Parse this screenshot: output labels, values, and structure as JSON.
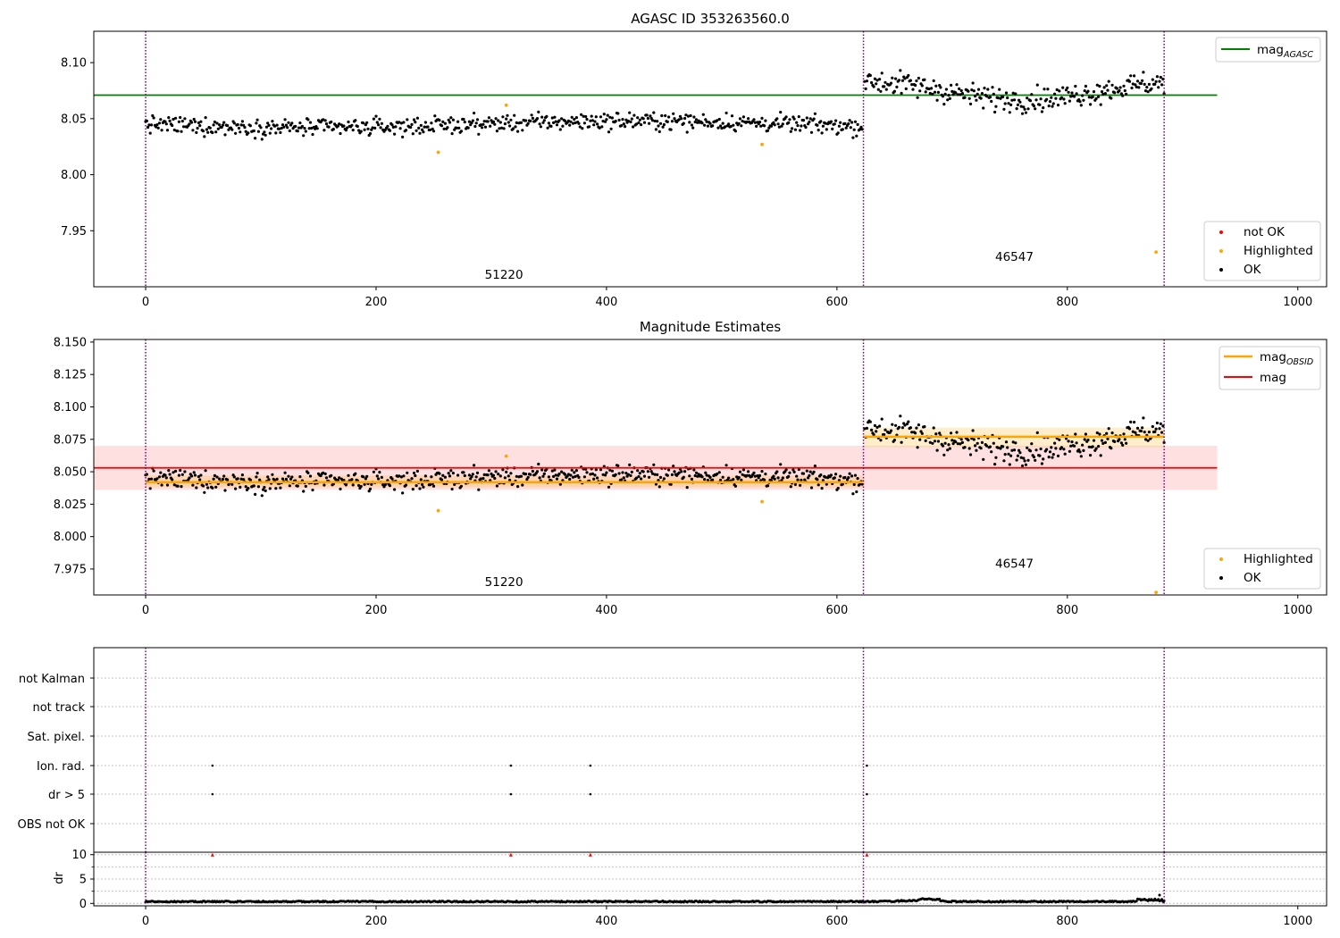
{
  "chart_data": [
    {
      "type": "scatter",
      "title": "AGASC ID 353263560.0",
      "xlim": [
        -45,
        1025
      ],
      "ylim": [
        7.9,
        8.128
      ],
      "xticks": [
        0,
        200,
        400,
        600,
        800,
        1000
      ],
      "yticks": [
        7.95,
        8.0,
        8.05,
        8.1
      ],
      "ytick_labels": [
        "7.95",
        "8.00",
        "8.05",
        "8.10"
      ],
      "obsid_boundaries": [
        0,
        623,
        884
      ],
      "obsid_labels": [
        {
          "text": "51220",
          "x": 311,
          "y": 7.907
        },
        {
          "text": "46547",
          "x": 754,
          "y": 7.923
        }
      ],
      "mag_agasc": {
        "value": 8.071,
        "x_range": [
          -45,
          930
        ]
      },
      "segments": [
        {
          "x_start": 0,
          "x_end": 622,
          "center": 8.045,
          "spread": 0.005
        },
        {
          "x_start": 624,
          "x_end": 884,
          "center": 8.077,
          "spread": 0.007
        }
      ],
      "highlighted_points": [
        [
          254,
          8.02
        ],
        [
          313,
          8.062
        ],
        [
          535,
          8.027
        ],
        [
          877,
          7.931
        ]
      ],
      "legend": {
        "top": [
          {
            "label": "mag",
            "subscript": "AGASC",
            "color": "#008000",
            "marker": "line"
          }
        ],
        "bottom": [
          {
            "label": "not OK",
            "color": "#ff0000",
            "marker": "dot"
          },
          {
            "label": "Highlighted",
            "color": "#ffa500",
            "marker": "dot"
          },
          {
            "label": "OK",
            "color": "#000000",
            "marker": "dot"
          }
        ]
      }
    },
    {
      "type": "scatter",
      "title": "Magnitude Estimates",
      "xlim": [
        -45,
        1025
      ],
      "ylim": [
        7.955,
        8.152
      ],
      "xticks": [
        0,
        200,
        400,
        600,
        800,
        1000
      ],
      "yticks": [
        7.975,
        8.0,
        8.025,
        8.05,
        8.075,
        8.1,
        8.125,
        8.15
      ],
      "ytick_labels": [
        "7.975",
        "8.000",
        "8.025",
        "8.050",
        "8.075",
        "8.100",
        "8.125",
        "8.150"
      ],
      "obsid_boundaries": [
        0,
        623,
        884
      ],
      "obsid_labels": [
        {
          "text": "51220",
          "x": 311,
          "y": 7.962
        },
        {
          "text": "46547",
          "x": 754,
          "y": 7.976
        }
      ],
      "mag": {
        "value": 8.053,
        "band": [
          8.036,
          8.07
        ],
        "x_range": [
          -45,
          930
        ]
      },
      "mag_obsid": [
        {
          "x_range": [
            0,
            623
          ],
          "value": 8.042,
          "band": [
            8.038,
            8.047
          ]
        },
        {
          "x_range": [
            623,
            884
          ],
          "value": 8.077,
          "band": [
            8.069,
            8.084
          ]
        }
      ],
      "segments": [
        {
          "x_start": 0,
          "x_end": 622,
          "center": 8.045,
          "spread": 0.005
        },
        {
          "x_start": 624,
          "x_end": 884,
          "center": 8.077,
          "spread": 0.007
        }
      ],
      "highlighted_points": [
        [
          254,
          8.02
        ],
        [
          313,
          8.062
        ],
        [
          535,
          8.027
        ],
        [
          877,
          7.957
        ]
      ],
      "legend": {
        "top": [
          {
            "label": "mag",
            "subscript": "OBSID",
            "color": "#ffa500",
            "marker": "line"
          },
          {
            "label": "mag",
            "subscript": "",
            "color": "#ff0000",
            "marker": "line"
          }
        ],
        "bottom": [
          {
            "label": "Highlighted",
            "color": "#ffa500",
            "marker": "dot"
          },
          {
            "label": "OK",
            "color": "#000000",
            "marker": "dot"
          }
        ]
      }
    },
    {
      "type": "scatter",
      "title": "",
      "xlim": [
        -45,
        1025
      ],
      "flag_rows": [
        "not Kalman",
        "not track",
        "Sat. pixel.",
        "Ion. rad.",
        "dr > 5",
        "OBS not OK"
      ],
      "flag_points": {
        "Ion. rad.": [
          58,
          317,
          386,
          626
        ],
        "dr > 5": [
          58,
          317,
          386,
          626
        ]
      },
      "obsid_boundaries": [
        0,
        623,
        884
      ]
    },
    {
      "type": "scatter",
      "title": "",
      "ylabel": "dr",
      "xlim": [
        -45,
        1025
      ],
      "ylim": [
        -0.5,
        10.5
      ],
      "xticks": [
        0,
        200,
        400,
        600,
        800,
        1000
      ],
      "yticks": [
        0,
        5,
        10
      ],
      "ytick_labels": [
        "0",
        "5",
        "10"
      ],
      "capped_points": [
        58,
        317,
        386,
        626
      ],
      "cap_value": 10,
      "obsid_boundaries": [
        0,
        623,
        884
      ]
    }
  ]
}
